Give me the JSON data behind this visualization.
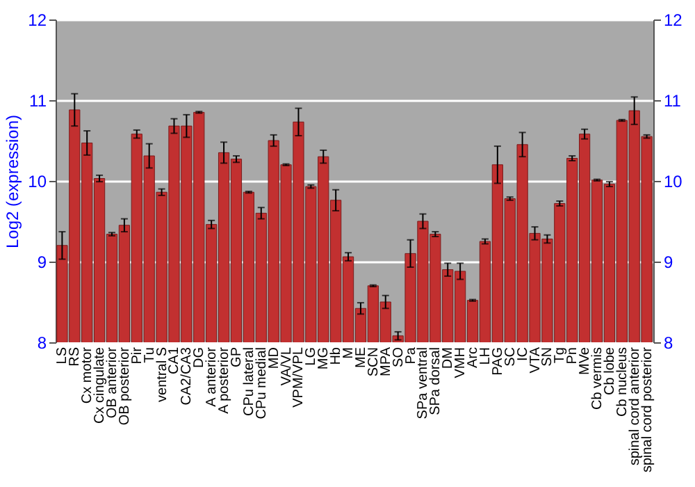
{
  "chart_data": {
    "type": "bar",
    "ylabel": "Log2 (expression)",
    "categories": [
      "LS",
      "RS",
      "Cx motor",
      "Cx cingulate",
      "OB anterior",
      "OB posterior",
      "Pir",
      "Tu",
      "ventral S",
      "CA1",
      "CA2/CA3",
      "DG",
      "A anterior",
      "A posterior",
      "GP",
      "CPu lateral",
      "CPu medial",
      "MD",
      "VA/VL",
      "VPM/VPL",
      "LG",
      "MG",
      "Hb",
      "M",
      "ME",
      "SCN",
      "MPA",
      "SO",
      "Pa",
      "SPa ventral",
      "SPa dorsal",
      "DM",
      "VMH",
      "Arc",
      "LH",
      "PAG",
      "SC",
      "IC",
      "VTA",
      "SN",
      "Tg",
      "Pn",
      "MVe",
      "Cb vermis",
      "Cb lobe",
      "Cb nucleus",
      "spinal cord anterior",
      "spinal cord posterior"
    ],
    "values": [
      9.2,
      10.88,
      10.47,
      10.03,
      9.34,
      9.45,
      10.58,
      10.31,
      9.86,
      10.68,
      10.68,
      10.85,
      9.46,
      10.35,
      10.27,
      9.86,
      9.6,
      10.5,
      10.2,
      10.73,
      9.93,
      10.3,
      9.76,
      9.06,
      8.42,
      8.7,
      8.5,
      8.08,
      9.1,
      9.5,
      9.34,
      8.9,
      8.88,
      8.52,
      9.25,
      10.2,
      9.78,
      10.45,
      9.35,
      9.28,
      9.72,
      10.28,
      10.58,
      10.01,
      9.96,
      10.75,
      10.87,
      10.55
    ],
    "errors": [
      0.17,
      0.2,
      0.15,
      0.04,
      0.02,
      0.08,
      0.05,
      0.15,
      0.04,
      0.09,
      0.14,
      0.01,
      0.05,
      0.13,
      0.04,
      0.01,
      0.07,
      0.07,
      0.01,
      0.17,
      0.02,
      0.08,
      0.13,
      0.05,
      0.07,
      0.01,
      0.08,
      0.05,
      0.17,
      0.09,
      0.03,
      0.08,
      0.1,
      0.01,
      0.03,
      0.23,
      0.02,
      0.15,
      0.08,
      0.05,
      0.03,
      0.03,
      0.06,
      0.01,
      0.03,
      0.01,
      0.17,
      0.02
    ],
    "color": "#c23030",
    "ylim": [
      8,
      12
    ],
    "yticks": [
      8,
      9,
      10,
      11,
      12
    ],
    "y2lim": [
      8,
      12
    ],
    "y2ticks": [
      8,
      9,
      10,
      11,
      12
    ],
    "grid": "y"
  }
}
